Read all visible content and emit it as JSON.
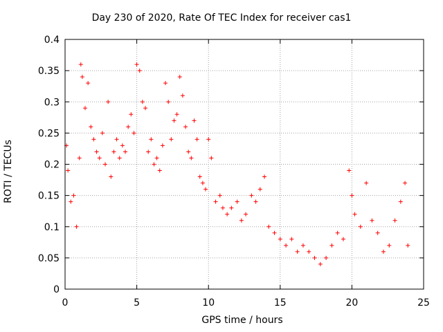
{
  "chart_data": {
    "type": "scatter",
    "title": "Day 230 of 2020, Rate Of TEC Index for receiver cas1",
    "xlabel": "GPS time / hours",
    "ylabel": "ROTI / TECUs",
    "xlim": [
      0,
      25
    ],
    "ylim": [
      0,
      0.4
    ],
    "xticks": [
      "0",
      "5",
      "10",
      "15",
      "20",
      "25"
    ],
    "yticks": [
      "0",
      "0.05",
      "0.1",
      "0.15",
      "0.2",
      "0.25",
      "0.3",
      "0.35",
      "0.4"
    ],
    "grid": true,
    "marker": "+",
    "color": "#ff0000",
    "series": [
      {
        "x": [
          0.1,
          0.2,
          0.4,
          0.6,
          0.8,
          1.0,
          1.1,
          1.2,
          1.4,
          1.6,
          1.8,
          2.0,
          2.2,
          2.4,
          2.6,
          2.8,
          3.0,
          3.2,
          3.4,
          3.6,
          3.8,
          4.0,
          4.2,
          4.4,
          4.6,
          4.8,
          5.0,
          5.2,
          5.4,
          5.6,
          5.8,
          6.0,
          6.2,
          6.4,
          6.6,
          6.8,
          7.0,
          7.2,
          7.4,
          7.6,
          7.8,
          8.0,
          8.2,
          8.4,
          8.6,
          8.8,
          9.0,
          9.2,
          9.4,
          9.6,
          9.8,
          10.0,
          10.2,
          10.5,
          10.8,
          11.0,
          11.3,
          11.6,
          12.0,
          12.3,
          12.6,
          13.0,
          13.3,
          13.6,
          13.9,
          14.2,
          14.6,
          15.0,
          15.4,
          15.8,
          16.2,
          16.6,
          17.0,
          17.4,
          17.8,
          18.2,
          18.6,
          19.0,
          19.4,
          19.8,
          20.0,
          20.2,
          20.6,
          21.0,
          21.4,
          21.8,
          22.2,
          22.6,
          23.0,
          23.4,
          23.7,
          23.9
        ],
        "y": [
          0.23,
          0.19,
          0.14,
          0.15,
          0.1,
          0.21,
          0.36,
          0.34,
          0.29,
          0.33,
          0.26,
          0.24,
          0.22,
          0.21,
          0.25,
          0.2,
          0.3,
          0.18,
          0.22,
          0.24,
          0.21,
          0.23,
          0.22,
          0.26,
          0.28,
          0.25,
          0.36,
          0.35,
          0.3,
          0.29,
          0.22,
          0.24,
          0.2,
          0.21,
          0.19,
          0.23,
          0.33,
          0.3,
          0.24,
          0.27,
          0.28,
          0.34,
          0.31,
          0.26,
          0.22,
          0.21,
          0.27,
          0.24,
          0.18,
          0.17,
          0.16,
          0.24,
          0.21,
          0.14,
          0.15,
          0.13,
          0.12,
          0.13,
          0.14,
          0.11,
          0.12,
          0.15,
          0.14,
          0.16,
          0.18,
          0.1,
          0.09,
          0.08,
          0.07,
          0.08,
          0.06,
          0.07,
          0.06,
          0.05,
          0.04,
          0.05,
          0.07,
          0.09,
          0.08,
          0.19,
          0.15,
          0.12,
          0.1,
          0.17,
          0.11,
          0.09,
          0.06,
          0.07,
          0.11,
          0.14,
          0.17,
          0.07
        ]
      }
    ]
  }
}
